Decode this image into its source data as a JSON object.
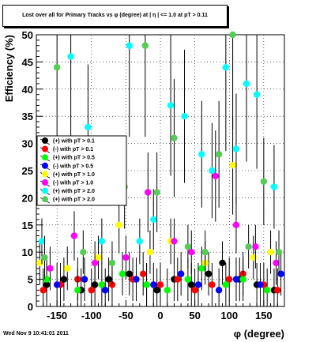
{
  "chart_data": {
    "type": "scatter",
    "title": "Lost over all for Primary Tracks vs φ (degree) at | η | <= 1.0 at pT > 0.11",
    "xlabel": "φ (degree)",
    "ylabel": "Efficiency (%)",
    "xlim": [
      -180,
      180
    ],
    "ylim": [
      0,
      50
    ],
    "xticks": [
      -150,
      -100,
      -50,
      0,
      50,
      100,
      150
    ],
    "yticks": [
      0,
      5,
      10,
      15,
      20,
      25,
      30,
      35,
      40,
      45,
      50
    ],
    "grid": true,
    "legend_position": "left",
    "series": [
      {
        "name": "(+) with pT > 0.1",
        "color": "#000000",
        "x": [
          -165,
          -140,
          -115,
          -95,
          -75,
          -45,
          -20,
          -5,
          20,
          45,
          70,
          90,
          115,
          140,
          165
        ],
        "y": [
          4,
          5,
          3,
          4,
          5,
          6,
          4,
          3,
          5,
          4,
          6,
          8,
          5,
          4,
          3
        ]
      },
      {
        "name": "(-) with pT > 0.1",
        "color": "#ff0000",
        "x": [
          -170,
          -145,
          -120,
          -100,
          -70,
          -40,
          -25,
          0,
          25,
          50,
          75,
          100,
          120,
          150,
          170
        ],
        "y": [
          3,
          4,
          5,
          3,
          4,
          5,
          6,
          4,
          5,
          3,
          4,
          5,
          6,
          4,
          3
        ]
      },
      {
        "name": "(+) with pT > 0.5",
        "color": "#00ff00",
        "x": [
          -165,
          -120,
          -85,
          -55,
          -20,
          10,
          40,
          60,
          95,
          120,
          155
        ],
        "y": [
          5,
          3,
          4,
          6,
          4,
          3,
          5,
          7,
          4,
          5,
          3
        ]
      },
      {
        "name": "(-) with pT > 0.5",
        "color": "#0000ff",
        "x": [
          -150,
          -110,
          -80,
          -35,
          -10,
          30,
          55,
          85,
          110,
          145,
          175
        ],
        "y": [
          4,
          5,
          3,
          5,
          4,
          6,
          4,
          3,
          5,
          4,
          6
        ]
      },
      {
        "name": "(+) with pT > 1.0",
        "color": "#ffff00",
        "x": [
          -175,
          -135,
          -90,
          -60,
          -15,
          15,
          65,
          105,
          135,
          160
        ],
        "y": [
          8,
          7,
          9,
          15,
          10,
          12,
          8,
          26,
          9,
          10
        ]
      },
      {
        "name": "(-) with pT > 1.0",
        "color": "#ff00ff",
        "x": [
          -160,
          -125,
          -95,
          -50,
          -18,
          20,
          45,
          80,
          110,
          138,
          168
        ],
        "y": [
          7,
          13,
          8,
          9,
          21,
          12,
          10,
          24,
          15,
          11,
          8
        ]
      },
      {
        "name": "(+) with pT > 2.0",
        "color": "#00ffff",
        "x": [
          -172,
          -130,
          -105,
          -85,
          -45,
          -30,
          -10,
          15,
          35,
          60,
          75,
          95,
          110,
          125,
          140,
          165
        ],
        "y": [
          12,
          46,
          33,
          12,
          48,
          12,
          16,
          37,
          35,
          28,
          25,
          44,
          29,
          41,
          39,
          22
        ]
      },
      {
        "name": "(+) with pT > 2.0",
        "color": "#55cc55",
        "x": [
          -168,
          -150,
          -112,
          -70,
          -52,
          -22,
          -5,
          20,
          40,
          65,
          85,
          105,
          128,
          150,
          172
        ],
        "y": [
          9,
          44,
          10,
          8,
          22,
          48,
          21,
          31,
          11,
          10,
          28,
          50,
          11,
          23,
          10
        ]
      }
    ]
  },
  "footer": {
    "timestamp": "Wed Nov  9 10:41:01 2011"
  }
}
